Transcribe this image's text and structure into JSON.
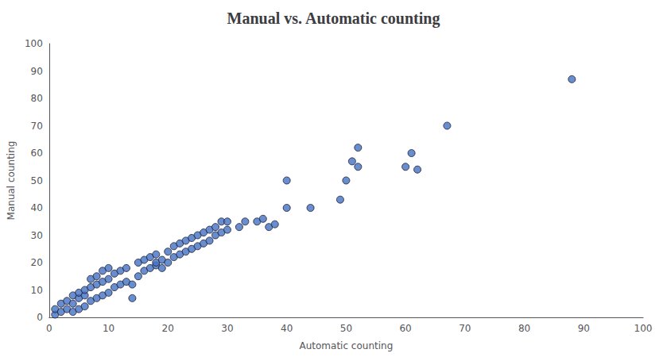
{
  "chart_data": {
    "type": "scatter",
    "title": "Manual vs. Automatic counting",
    "xlabel": "Automatic counting",
    "ylabel": "Manual counting",
    "x": [
      1,
      1,
      2,
      2,
      3,
      3,
      4,
      4,
      4,
      5,
      5,
      5,
      6,
      6,
      6,
      7,
      7,
      7,
      8,
      8,
      8,
      9,
      9,
      9,
      10,
      10,
      10,
      11,
      11,
      12,
      12,
      13,
      13,
      14,
      14,
      15,
      15,
      16,
      16,
      17,
      17,
      18,
      18,
      18,
      19,
      19,
      20,
      20,
      21,
      21,
      22,
      22,
      23,
      23,
      24,
      24,
      25,
      25,
      26,
      26,
      27,
      27,
      28,
      28,
      29,
      29,
      30,
      30,
      32,
      33,
      35,
      36,
      37,
      38,
      40,
      40,
      44,
      49,
      50,
      51,
      52,
      52,
      60,
      61,
      62,
      67,
      88
    ],
    "values": [
      1,
      3,
      2,
      5,
      3,
      6,
      2,
      5,
      8,
      3,
      7,
      9,
      4,
      8,
      10,
      6,
      11,
      14,
      7,
      12,
      15,
      8,
      13,
      17,
      9,
      14,
      18,
      11,
      16,
      12,
      17,
      13,
      18,
      7,
      12,
      15,
      20,
      17,
      21,
      18,
      22,
      19,
      20,
      23,
      18,
      21,
      20,
      24,
      22,
      26,
      23,
      27,
      24,
      28,
      25,
      29,
      26,
      30,
      27,
      31,
      28,
      32,
      30,
      33,
      31,
      35,
      32,
      35,
      33,
      35,
      35,
      36,
      33,
      34,
      40,
      50,
      40,
      43,
      50,
      57,
      55,
      62,
      55,
      60,
      54,
      70,
      87
    ],
    "color": "#4472C4",
    "xlim": [
      0,
      100
    ],
    "ylim": [
      0,
      100
    ],
    "xticks": [
      0,
      10,
      20,
      30,
      40,
      50,
      60,
      70,
      80,
      90,
      100
    ],
    "yticks": [
      0,
      10,
      20,
      30,
      40,
      50,
      60,
      70,
      80,
      90,
      100
    ],
    "grid": false
  }
}
